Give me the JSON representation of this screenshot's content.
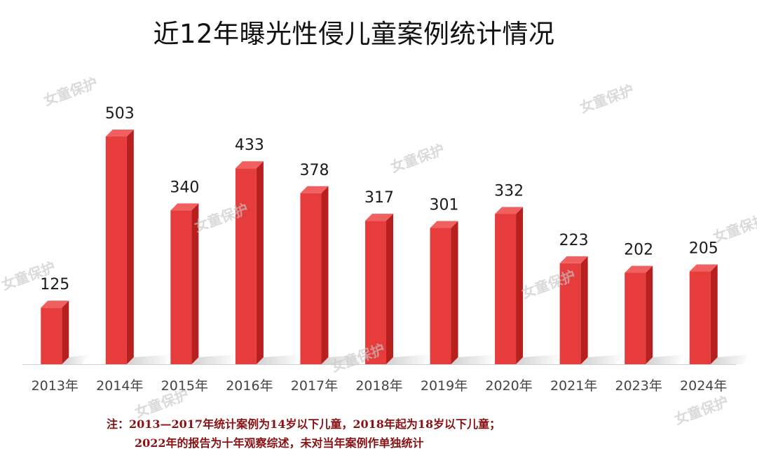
{
  "chart_data": {
    "type": "bar",
    "title": "近12年曝光性侵儿童案例统计情况",
    "categories": [
      "2013年",
      "2014年",
      "2015年",
      "2016年",
      "2017年",
      "2018年",
      "2019年",
      "2020年",
      "2021年",
      "2023年",
      "2024年"
    ],
    "values": [
      125,
      503,
      340,
      433,
      378,
      317,
      301,
      332,
      223,
      202,
      205
    ],
    "xlabel": "",
    "ylabel": "",
    "ylim": [
      0,
      520
    ],
    "grid": false,
    "legend": "none",
    "bar_color": "#e63c3c",
    "bar_side_color": "#b81f1f",
    "bar_top_color": "#f06060"
  },
  "note": {
    "line1": "注：2013—2017年统计案例为14岁以下儿童，2018年起为18岁以下儿童；",
    "line2": "2022年的报告为十年观察综述，未对当年案例作单独统计"
  },
  "watermark": {
    "text": "女童保护"
  }
}
